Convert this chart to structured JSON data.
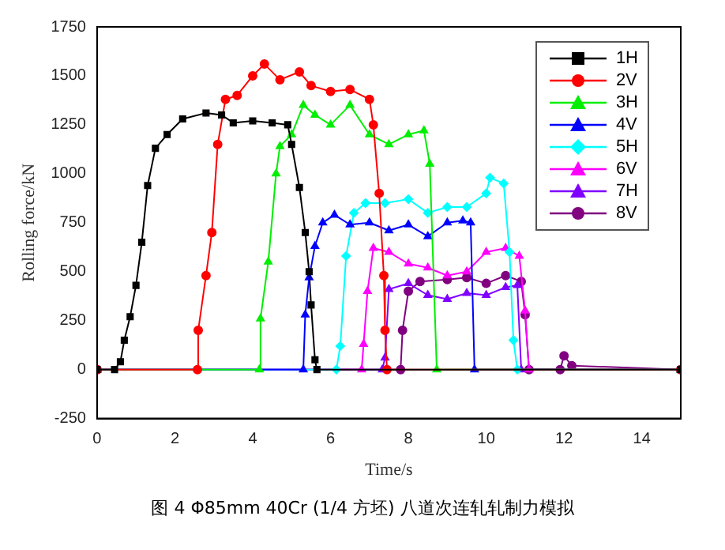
{
  "chart_data": {
    "type": "line",
    "xlabel": "Time/s",
    "ylabel": "Rolling force/kN",
    "annotations": [
      "图 4 Φ85mm 40Cr (1/4 方坯) 八道次连轧轧制力模拟"
    ],
    "xlim": [
      0,
      15
    ],
    "xticks": [
      0,
      2,
      4,
      6,
      8,
      10,
      12,
      14
    ],
    "ylim": [
      -250,
      1750
    ],
    "yticks": [
      -250,
      0,
      250,
      500,
      750,
      1000,
      1250,
      1500,
      1750
    ],
    "grid": false,
    "legend": "top right",
    "line_style": "solid",
    "series": [
      {
        "name": "1H",
        "color": "#000000",
        "marker": "square",
        "x": [
          0,
          0.45,
          0.6,
          0.7,
          0.85,
          1.0,
          1.15,
          1.3,
          1.5,
          1.8,
          2.2,
          2.8,
          3.2,
          3.5,
          4.0,
          4.5,
          4.9,
          5.0,
          5.2,
          5.35,
          5.45,
          5.5,
          5.6,
          5.65,
          15
        ],
        "values": [
          0,
          0,
          40,
          150,
          270,
          430,
          650,
          940,
          1130,
          1200,
          1280,
          1310,
          1300,
          1260,
          1270,
          1260,
          1250,
          1150,
          930,
          700,
          500,
          330,
          50,
          0,
          0
        ]
      },
      {
        "name": "2V",
        "color": "#ff0000",
        "marker": "circle",
        "x": [
          0,
          2.58,
          2.6,
          2.8,
          2.95,
          3.1,
          3.3,
          3.6,
          4.0,
          4.3,
          4.7,
          5.2,
          5.5,
          6.0,
          6.5,
          7.0,
          7.1,
          7.25,
          7.37,
          7.4,
          7.45,
          15
        ],
        "values": [
          0,
          0,
          200,
          480,
          700,
          1150,
          1380,
          1400,
          1500,
          1560,
          1480,
          1520,
          1450,
          1420,
          1430,
          1380,
          1250,
          900,
          480,
          200,
          0,
          0
        ]
      },
      {
        "name": "3H",
        "color": "#00ee00",
        "marker": "triangle",
        "x": [
          0,
          4.17,
          4.2,
          4.4,
          4.6,
          4.7,
          5.0,
          5.3,
          5.6,
          6.0,
          6.5,
          7.0,
          7.5,
          8.0,
          8.4,
          8.55,
          8.73,
          15
        ],
        "values": [
          0,
          0,
          260,
          550,
          1000,
          1140,
          1200,
          1350,
          1300,
          1250,
          1350,
          1200,
          1150,
          1200,
          1220,
          1050,
          0,
          0
        ]
      },
      {
        "name": "4V",
        "color": "#0000ff",
        "marker": "triangle",
        "x": [
          0,
          5.3,
          5.35,
          5.45,
          5.6,
          5.8,
          6.1,
          6.5,
          7.0,
          7.5,
          8.0,
          8.5,
          9.0,
          9.4,
          9.6,
          9.7,
          15
        ],
        "values": [
          0,
          0,
          280,
          470,
          630,
          750,
          790,
          740,
          750,
          710,
          740,
          680,
          750,
          760,
          750,
          0,
          0
        ]
      },
      {
        "name": "5H",
        "color": "#00ffff",
        "marker": "diamond",
        "x": [
          0,
          6.15,
          6.25,
          6.4,
          6.6,
          6.9,
          7.4,
          8.0,
          8.5,
          9.0,
          9.5,
          10.0,
          10.1,
          10.45,
          10.6,
          10.7,
          10.8,
          15
        ],
        "values": [
          0,
          0,
          120,
          580,
          800,
          850,
          850,
          870,
          800,
          830,
          830,
          900,
          980,
          950,
          600,
          150,
          0,
          0
        ]
      },
      {
        "name": "6V",
        "color": "#ff00ff",
        "marker": "triangle",
        "x": [
          0,
          6.8,
          6.85,
          6.95,
          7.1,
          7.5,
          8.0,
          8.5,
          9.0,
          9.5,
          10.0,
          10.5,
          10.85,
          11.0,
          11.1,
          15
        ],
        "values": [
          0,
          0,
          130,
          400,
          620,
          600,
          540,
          520,
          480,
          500,
          600,
          620,
          580,
          300,
          0,
          0
        ]
      },
      {
        "name": "7H",
        "color": "#8000ff",
        "marker": "triangle",
        "x": [
          0,
          7.33,
          7.4,
          7.5,
          8.0,
          8.5,
          9.0,
          9.5,
          10.0,
          10.5,
          10.8,
          10.9,
          15
        ],
        "values": [
          0,
          0,
          60,
          410,
          440,
          380,
          360,
          390,
          380,
          420,
          430,
          0,
          0
        ]
      },
      {
        "name": "8V",
        "color": "#800080",
        "marker": "circle",
        "x": [
          0,
          7.8,
          7.85,
          8.0,
          8.3,
          9.0,
          9.5,
          10.0,
          10.5,
          10.9,
          11.0,
          11.1,
          11.9,
          12.0,
          12.2,
          15
        ],
        "values": [
          0,
          0,
          200,
          400,
          450,
          460,
          470,
          440,
          480,
          450,
          280,
          0,
          0,
          70,
          20,
          0
        ]
      }
    ]
  }
}
